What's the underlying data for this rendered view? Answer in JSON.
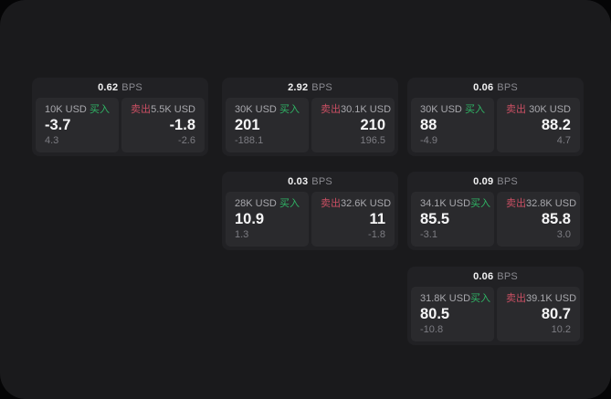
{
  "labels": {
    "buy": "买入",
    "sell": "卖出",
    "bps_unit": "BPS"
  },
  "colors": {
    "buy_accent": "#2fb465",
    "sell_accent": "#c94f63",
    "panel_bg": "#1a1a1c",
    "card_bg": "#212124",
    "tile_bg": "#2a2a2d"
  },
  "cards": [
    {
      "bps": "0.62",
      "buy": {
        "size": "10K USD",
        "value": "-3.7",
        "change": "4.3"
      },
      "sell": {
        "size": "5.5K USD",
        "value": "-1.8",
        "change": "-2.6"
      }
    },
    {
      "bps": "2.92",
      "buy": {
        "size": "30K USD",
        "value": "201",
        "change": "-188.1"
      },
      "sell": {
        "size": "30.1K USD",
        "value": "210",
        "change": "196.5"
      }
    },
    {
      "bps": "0.06",
      "buy": {
        "size": "30K USD",
        "value": "88",
        "change": "-4.9"
      },
      "sell": {
        "size": "30K USD",
        "value": "88.2",
        "change": "4.7"
      }
    },
    {
      "bps": "0.03",
      "buy": {
        "size": "28K USD",
        "value": "10.9",
        "change": "1.3"
      },
      "sell": {
        "size": "32.6K USD",
        "value": "11",
        "change": "-1.8"
      }
    },
    {
      "bps": "0.09",
      "buy": {
        "size": "34.1K USD",
        "value": "85.5",
        "change": "-3.1"
      },
      "sell": {
        "size": "32.8K USD",
        "value": "85.8",
        "change": "3.0"
      }
    },
    {
      "bps": "0.06",
      "buy": {
        "size": "31.8K USD",
        "value": "80.5",
        "change": "-10.8"
      },
      "sell": {
        "size": "39.1K USD",
        "value": "80.7",
        "change": "10.2"
      }
    }
  ]
}
